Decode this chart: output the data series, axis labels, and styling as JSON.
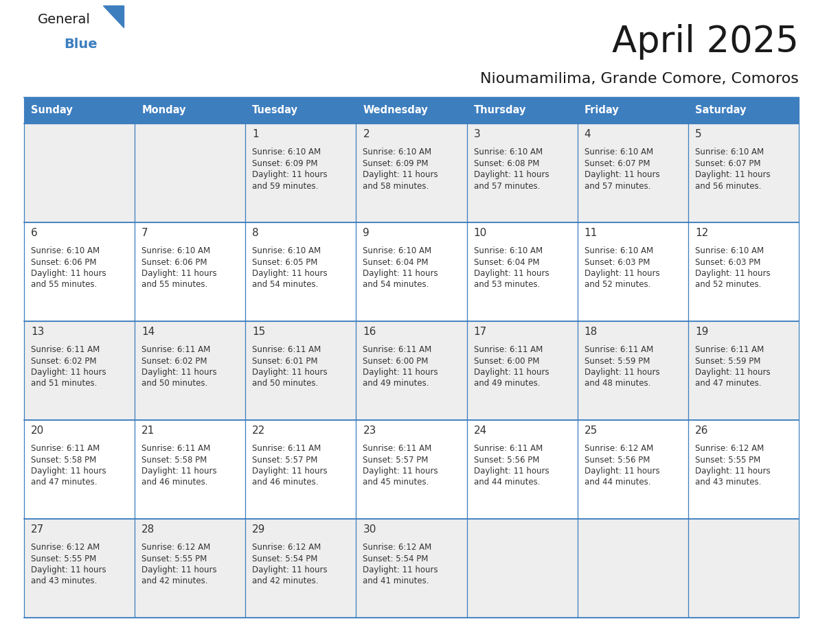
{
  "title": "April 2025",
  "subtitle": "Nioumamilima, Grande Comore, Comoros",
  "days_of_week": [
    "Sunday",
    "Monday",
    "Tuesday",
    "Wednesday",
    "Thursday",
    "Friday",
    "Saturday"
  ],
  "header_bg_color": "#3d7ebf",
  "header_text_color": "#ffffff",
  "row_bg_even": "#eeeeee",
  "row_bg_odd": "#ffffff",
  "border_color": "#3d7ebf",
  "text_color": "#333333",
  "day_num_color": "#333333",
  "calendar_data": [
    [
      {
        "day": "",
        "sunrise": "",
        "sunset": "",
        "daylight": ""
      },
      {
        "day": "",
        "sunrise": "",
        "sunset": "",
        "daylight": ""
      },
      {
        "day": "1",
        "sunrise": "6:10 AM",
        "sunset": "6:09 PM",
        "daylight": "11 hours\nand 59 minutes."
      },
      {
        "day": "2",
        "sunrise": "6:10 AM",
        "sunset": "6:09 PM",
        "daylight": "11 hours\nand 58 minutes."
      },
      {
        "day": "3",
        "sunrise": "6:10 AM",
        "sunset": "6:08 PM",
        "daylight": "11 hours\nand 57 minutes."
      },
      {
        "day": "4",
        "sunrise": "6:10 AM",
        "sunset": "6:07 PM",
        "daylight": "11 hours\nand 57 minutes."
      },
      {
        "day": "5",
        "sunrise": "6:10 AM",
        "sunset": "6:07 PM",
        "daylight": "11 hours\nand 56 minutes."
      }
    ],
    [
      {
        "day": "6",
        "sunrise": "6:10 AM",
        "sunset": "6:06 PM",
        "daylight": "11 hours\nand 55 minutes."
      },
      {
        "day": "7",
        "sunrise": "6:10 AM",
        "sunset": "6:06 PM",
        "daylight": "11 hours\nand 55 minutes."
      },
      {
        "day": "8",
        "sunrise": "6:10 AM",
        "sunset": "6:05 PM",
        "daylight": "11 hours\nand 54 minutes."
      },
      {
        "day": "9",
        "sunrise": "6:10 AM",
        "sunset": "6:04 PM",
        "daylight": "11 hours\nand 54 minutes."
      },
      {
        "day": "10",
        "sunrise": "6:10 AM",
        "sunset": "6:04 PM",
        "daylight": "11 hours\nand 53 minutes."
      },
      {
        "day": "11",
        "sunrise": "6:10 AM",
        "sunset": "6:03 PM",
        "daylight": "11 hours\nand 52 minutes."
      },
      {
        "day": "12",
        "sunrise": "6:10 AM",
        "sunset": "6:03 PM",
        "daylight": "11 hours\nand 52 minutes."
      }
    ],
    [
      {
        "day": "13",
        "sunrise": "6:11 AM",
        "sunset": "6:02 PM",
        "daylight": "11 hours\nand 51 minutes."
      },
      {
        "day": "14",
        "sunrise": "6:11 AM",
        "sunset": "6:02 PM",
        "daylight": "11 hours\nand 50 minutes."
      },
      {
        "day": "15",
        "sunrise": "6:11 AM",
        "sunset": "6:01 PM",
        "daylight": "11 hours\nand 50 minutes."
      },
      {
        "day": "16",
        "sunrise": "6:11 AM",
        "sunset": "6:00 PM",
        "daylight": "11 hours\nand 49 minutes."
      },
      {
        "day": "17",
        "sunrise": "6:11 AM",
        "sunset": "6:00 PM",
        "daylight": "11 hours\nand 49 minutes."
      },
      {
        "day": "18",
        "sunrise": "6:11 AM",
        "sunset": "5:59 PM",
        "daylight": "11 hours\nand 48 minutes."
      },
      {
        "day": "19",
        "sunrise": "6:11 AM",
        "sunset": "5:59 PM",
        "daylight": "11 hours\nand 47 minutes."
      }
    ],
    [
      {
        "day": "20",
        "sunrise": "6:11 AM",
        "sunset": "5:58 PM",
        "daylight": "11 hours\nand 47 minutes."
      },
      {
        "day": "21",
        "sunrise": "6:11 AM",
        "sunset": "5:58 PM",
        "daylight": "11 hours\nand 46 minutes."
      },
      {
        "day": "22",
        "sunrise": "6:11 AM",
        "sunset": "5:57 PM",
        "daylight": "11 hours\nand 46 minutes."
      },
      {
        "day": "23",
        "sunrise": "6:11 AM",
        "sunset": "5:57 PM",
        "daylight": "11 hours\nand 45 minutes."
      },
      {
        "day": "24",
        "sunrise": "6:11 AM",
        "sunset": "5:56 PM",
        "daylight": "11 hours\nand 44 minutes."
      },
      {
        "day": "25",
        "sunrise": "6:12 AM",
        "sunset": "5:56 PM",
        "daylight": "11 hours\nand 44 minutes."
      },
      {
        "day": "26",
        "sunrise": "6:12 AM",
        "sunset": "5:55 PM",
        "daylight": "11 hours\nand 43 minutes."
      }
    ],
    [
      {
        "day": "27",
        "sunrise": "6:12 AM",
        "sunset": "5:55 PM",
        "daylight": "11 hours\nand 43 minutes."
      },
      {
        "day": "28",
        "sunrise": "6:12 AM",
        "sunset": "5:55 PM",
        "daylight": "11 hours\nand 42 minutes."
      },
      {
        "day": "29",
        "sunrise": "6:12 AM",
        "sunset": "5:54 PM",
        "daylight": "11 hours\nand 42 minutes."
      },
      {
        "day": "30",
        "sunrise": "6:12 AM",
        "sunset": "5:54 PM",
        "daylight": "11 hours\nand 41 minutes."
      },
      {
        "day": "",
        "sunrise": "",
        "sunset": "",
        "daylight": ""
      },
      {
        "day": "",
        "sunrise": "",
        "sunset": "",
        "daylight": ""
      },
      {
        "day": "",
        "sunrise": "",
        "sunset": "",
        "daylight": ""
      }
    ]
  ],
  "logo_text_general": "General",
  "logo_text_blue": "Blue",
  "logo_color_general": "#1a1a1a",
  "logo_color_blue": "#3d7ebf",
  "logo_triangle_color": "#3d7ebf",
  "fig_width": 11.88,
  "fig_height": 9.18,
  "dpi": 100
}
